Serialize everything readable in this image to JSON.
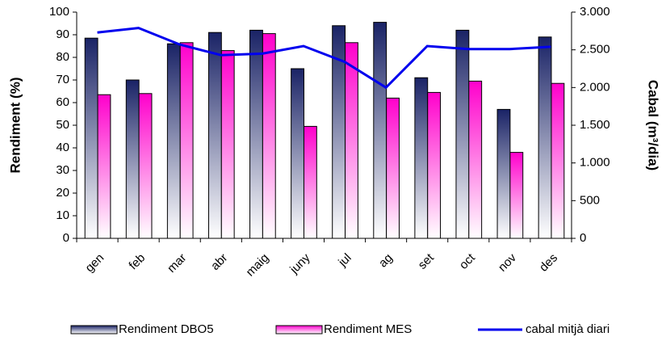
{
  "chart_data": {
    "type": "bar-line",
    "y_label": "Rendiment (%)",
    "y2_label": "Cabal (m³/dia)",
    "categories": [
      "gen",
      "feb",
      "mar",
      "abr",
      "maig",
      "juny",
      "jul",
      "ag",
      "set",
      "oct",
      "nov",
      "des"
    ],
    "ylim": [
      0,
      100
    ],
    "yticks": [
      0,
      10,
      20,
      30,
      40,
      50,
      60,
      70,
      80,
      90,
      100
    ],
    "y2lim": [
      0,
      3000
    ],
    "y2ticks": [
      0,
      500,
      {
        "value": 1000,
        "label": "1.000"
      },
      {
        "value": 1500,
        "label": "1.500"
      },
      {
        "value": 2000,
        "label": "2.000"
      },
      {
        "value": 2500,
        "label": "2.500"
      },
      {
        "value": 3000,
        "label": "3.000"
      }
    ],
    "series": [
      {
        "name": "Rendiment DBO5",
        "type": "bar",
        "color": "#1a2366",
        "values": [
          88.5,
          70,
          86,
          91,
          92,
          75,
          94,
          95.5,
          71,
          92,
          57,
          89
        ]
      },
      {
        "name": "Rendiment MES",
        "type": "bar",
        "color": "#ff00cc",
        "values": [
          63.5,
          64,
          86.5,
          83,
          90.5,
          49.5,
          86.5,
          62,
          64.5,
          69.5,
          38,
          68.5
        ]
      },
      {
        "name": "cabal mitjà diari",
        "type": "line",
        "axis": "y2",
        "color": "#0000ee",
        "values": [
          2730,
          2790,
          2570,
          2430,
          2450,
          2550,
          2340,
          2000,
          2550,
          2510,
          2510,
          2540
        ]
      }
    ],
    "legend": "bottom"
  }
}
